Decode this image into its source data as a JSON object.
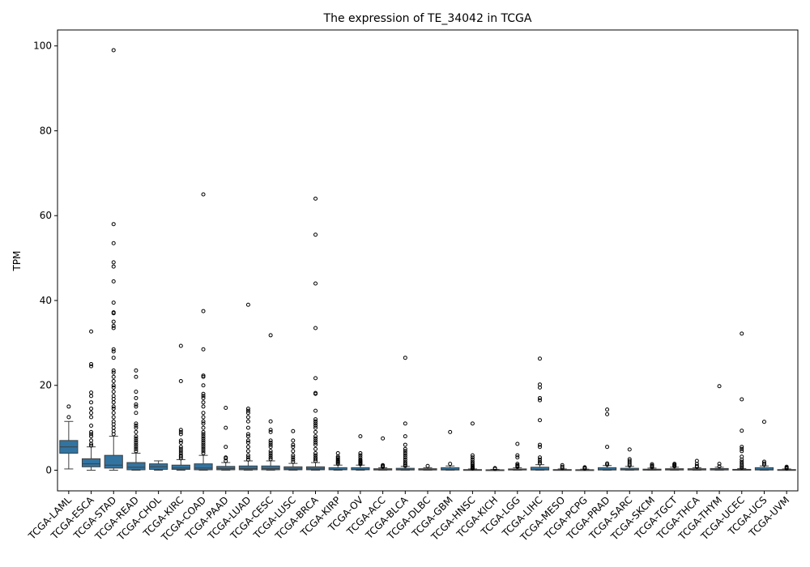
{
  "chart_data": {
    "type": "box",
    "title": "The expression of TE_34042 in TCGA",
    "xlabel": "",
    "ylabel": "TPM",
    "ylim": [
      -5,
      104
    ],
    "yticks": [
      0,
      20,
      40,
      60,
      80,
      100
    ],
    "grid": false,
    "color": "#3274a1",
    "categories": [
      "TCGA-LAML",
      "TCGA-ESCA",
      "TCGA-STAD",
      "TCGA-READ",
      "TCGA-CHOL",
      "TCGA-KIRC",
      "TCGA-COAD",
      "TCGA-PAAD",
      "TCGA-LUAD",
      "TCGA-CESC",
      "TCGA-LUSC",
      "TCGA-BRCA",
      "TCGA-KIRP",
      "TCGA-OV",
      "TCGA-ACC",
      "TCGA-BLCA",
      "TCGA-DLBC",
      "TCGA-GBM",
      "TCGA-HNSC",
      "TCGA-KICH",
      "TCGA-LGG",
      "TCGA-LIHC",
      "TCGA-MESO",
      "TCGA-PCPG",
      "TCGA-PRAD",
      "TCGA-SARC",
      "TCGA-SKCM",
      "TCGA-TGCT",
      "TCGA-THCA",
      "TCGA-THYM",
      "TCGA-UCEC",
      "TCGA-UCS",
      "TCGA-UVM"
    ],
    "boxes": [
      {
        "min": 0.3,
        "q1": 4.0,
        "median": 5.5,
        "q3": 7.0,
        "max": 11.5,
        "outliers": [
          12.5,
          15.0
        ]
      },
      {
        "min": 0.0,
        "q1": 0.8,
        "median": 1.5,
        "q3": 2.7,
        "max": 5.5,
        "outliers": [
          5.8,
          6.2,
          7.0,
          8.0,
          8.5,
          9.0,
          10.5,
          12.5,
          13.5,
          14.5,
          16.0,
          17.5,
          18.3,
          24.5,
          25.0,
          32.7
        ]
      },
      {
        "min": 0.0,
        "q1": 0.5,
        "median": 1.2,
        "q3": 3.5,
        "max": 8.0,
        "outliers": [
          8.5,
          9.2,
          10.0,
          10.8,
          11.5,
          12.5,
          13.5,
          14.5,
          15.0,
          16.0,
          16.8,
          17.5,
          18.5,
          19.5,
          20.0,
          21.0,
          22.0,
          23.0,
          23.5,
          26.5,
          28.0,
          28.5,
          33.5,
          34.0,
          35.0,
          37.0,
          37.2,
          39.5,
          44.5,
          48.0,
          49.0,
          53.5,
          58.0,
          99.0
        ]
      },
      {
        "min": 0.0,
        "q1": 0.1,
        "median": 0.7,
        "q3": 1.8,
        "max": 4.0,
        "outliers": [
          4.5,
          5.0,
          5.5,
          6.0,
          6.5,
          7.0,
          7.5,
          8.0,
          9.0,
          10.0,
          10.5,
          11.0,
          13.5,
          15.0,
          15.5,
          17.0,
          18.5,
          22.0,
          23.5
        ]
      },
      {
        "min": 0.0,
        "q1": 0.2,
        "median": 0.8,
        "q3": 1.5,
        "max": 2.2,
        "outliers": []
      },
      {
        "min": 0.0,
        "q1": 0.2,
        "median": 0.5,
        "q3": 1.2,
        "max": 2.5,
        "outliers": [
          2.8,
          3.2,
          3.5,
          4.0,
          4.5,
          5.0,
          5.5,
          6.5,
          7.0,
          8.5,
          9.0,
          9.5,
          21.0,
          29.3
        ]
      },
      {
        "min": 0.0,
        "q1": 0.1,
        "median": 0.5,
        "q3": 1.5,
        "max": 3.5,
        "outliers": [
          4.0,
          4.5,
          5.0,
          5.5,
          6.0,
          6.5,
          7.0,
          7.5,
          8.0,
          8.5,
          9.0,
          10.0,
          11.0,
          11.5,
          12.5,
          13.5,
          15.0,
          16.0,
          17.0,
          17.5,
          18.0,
          20.0,
          22.0,
          22.3,
          28.5,
          37.5,
          65.0
        ]
      },
      {
        "min": 0.0,
        "q1": 0.1,
        "median": 0.4,
        "q3": 0.9,
        "max": 1.8,
        "outliers": [
          2.2,
          2.8,
          3.0,
          5.5,
          10.0,
          14.7
        ]
      },
      {
        "min": 0.0,
        "q1": 0.1,
        "median": 0.4,
        "q3": 1.0,
        "max": 2.2,
        "outliers": [
          2.5,
          3.0,
          3.5,
          4.5,
          5.5,
          6.5,
          7.0,
          8.0,
          8.5,
          10.0,
          11.5,
          12.5,
          13.5,
          14.0,
          14.5,
          39.0
        ]
      },
      {
        "min": 0.0,
        "q1": 0.1,
        "median": 0.4,
        "q3": 1.0,
        "max": 2.2,
        "outliers": [
          2.6,
          3.0,
          3.5,
          4.0,
          4.5,
          5.5,
          6.0,
          6.5,
          7.0,
          9.0,
          9.5,
          11.5,
          31.8
        ]
      },
      {
        "min": 0.0,
        "q1": 0.1,
        "median": 0.3,
        "q3": 0.8,
        "max": 1.6,
        "outliers": [
          2.0,
          2.5,
          3.0,
          3.5,
          4.5,
          5.5,
          6.0,
          7.0,
          9.2
        ]
      },
      {
        "min": 0.0,
        "q1": 0.1,
        "median": 0.3,
        "q3": 0.8,
        "max": 1.8,
        "outliers": [
          2.2,
          2.6,
          3.0,
          3.5,
          4.0,
          5.0,
          6.0,
          6.5,
          7.0,
          7.5,
          8.0,
          9.0,
          10.0,
          10.5,
          11.0,
          11.5,
          12.0,
          14.0,
          18.0,
          18.2,
          21.7,
          33.5,
          44.0,
          55.5,
          64.0
        ]
      },
      {
        "min": 0.0,
        "q1": 0.1,
        "median": 0.2,
        "q3": 0.6,
        "max": 1.2,
        "outliers": [
          1.5,
          1.8,
          2.0,
          2.3,
          2.6,
          2.9,
          3.2,
          4.0
        ]
      },
      {
        "min": 0.0,
        "q1": 0.1,
        "median": 0.2,
        "q3": 0.6,
        "max": 1.2,
        "outliers": [
          1.4,
          1.6,
          1.8,
          2.0,
          2.2,
          2.5,
          3.0,
          3.5,
          4.0,
          8.0
        ]
      },
      {
        "min": 0.0,
        "q1": 0.05,
        "median": 0.15,
        "q3": 0.35,
        "max": 0.6,
        "outliers": [
          0.8,
          1.0,
          1.2,
          7.5
        ]
      },
      {
        "min": 0.0,
        "q1": 0.05,
        "median": 0.15,
        "q3": 0.45,
        "max": 0.9,
        "outliers": [
          1.0,
          1.3,
          1.6,
          2.0,
          2.5,
          3.0,
          3.5,
          4.0,
          4.5,
          5.0,
          6.0,
          8.0,
          11.0,
          26.5
        ]
      },
      {
        "min": 0.0,
        "q1": 0.05,
        "median": 0.15,
        "q3": 0.35,
        "max": 0.6,
        "outliers": [
          1.0
        ]
      },
      {
        "min": 0.0,
        "q1": 0.05,
        "median": 0.15,
        "q3": 0.6,
        "max": 1.0,
        "outliers": [
          1.5,
          9.0
        ]
      },
      {
        "min": 0.0,
        "q1": 0.02,
        "median": 0.05,
        "q3": 0.15,
        "max": 0.3,
        "outliers": [
          0.4,
          0.6,
          0.8,
          1.0,
          1.3,
          1.6,
          2.0,
          2.5,
          3.0,
          3.5,
          11.0
        ]
      },
      {
        "min": 0.0,
        "q1": 0.02,
        "median": 0.05,
        "q3": 0.1,
        "max": 0.2,
        "outliers": [
          0.3,
          0.5
        ]
      },
      {
        "min": 0.0,
        "q1": 0.05,
        "median": 0.12,
        "q3": 0.3,
        "max": 0.6,
        "outliers": [
          0.8,
          1.0,
          1.2,
          1.5,
          3.0,
          3.5,
          6.2
        ]
      },
      {
        "min": 0.0,
        "q1": 0.05,
        "median": 0.15,
        "q3": 0.7,
        "max": 1.3,
        "outliers": [
          1.6,
          2.0,
          2.5,
          3.0,
          5.5,
          6.0,
          11.8,
          16.5,
          17.0,
          19.5,
          20.2,
          26.3
        ]
      },
      {
        "min": 0.0,
        "q1": 0.02,
        "median": 0.05,
        "q3": 0.15,
        "max": 0.3,
        "outliers": [
          0.5,
          0.8,
          1.2
        ]
      },
      {
        "min": 0.0,
        "q1": 0.02,
        "median": 0.05,
        "q3": 0.12,
        "max": 0.25,
        "outliers": [
          0.35,
          0.5,
          0.7
        ]
      },
      {
        "min": 0.0,
        "q1": 0.05,
        "median": 0.15,
        "q3": 0.6,
        "max": 1.1,
        "outliers": [
          1.3,
          1.6,
          5.5,
          13.2,
          14.3
        ]
      },
      {
        "min": 0.0,
        "q1": 0.05,
        "median": 0.15,
        "q3": 0.45,
        "max": 0.9,
        "outliers": [
          1.1,
          1.4,
          1.8,
          2.2,
          2.6,
          4.9
        ]
      },
      {
        "min": 0.0,
        "q1": 0.02,
        "median": 0.08,
        "q3": 0.25,
        "max": 0.5,
        "outliers": [
          0.7,
          0.9,
          1.1,
          1.4
        ]
      },
      {
        "min": 0.0,
        "q1": 0.05,
        "median": 0.15,
        "q3": 0.35,
        "max": 0.7,
        "outliers": [
          0.9,
          1.1,
          1.3,
          1.5
        ]
      },
      {
        "min": 0.0,
        "q1": 0.05,
        "median": 0.15,
        "q3": 0.35,
        "max": 0.6,
        "outliers": [
          0.8,
          1.0,
          1.5,
          2.2
        ]
      },
      {
        "min": 0.0,
        "q1": 0.05,
        "median": 0.15,
        "q3": 0.4,
        "max": 0.7,
        "outliers": [
          0.9,
          1.5,
          19.8
        ]
      },
      {
        "min": 0.0,
        "q1": 0.02,
        "median": 0.08,
        "q3": 0.2,
        "max": 0.4,
        "outliers": [
          0.6,
          0.9,
          1.2,
          1.6,
          2.0,
          2.5,
          3.2,
          4.5,
          5.0,
          5.5,
          9.3,
          16.7,
          32.2
        ]
      },
      {
        "min": 0.0,
        "q1": 0.05,
        "median": 0.15,
        "q3": 0.6,
        "max": 1.0,
        "outliers": [
          1.3,
          1.6,
          2.0,
          11.4
        ]
      },
      {
        "min": 0.0,
        "q1": 0.02,
        "median": 0.05,
        "q3": 0.15,
        "max": 0.3,
        "outliers": [
          0.4,
          0.6,
          0.8
        ]
      }
    ]
  }
}
